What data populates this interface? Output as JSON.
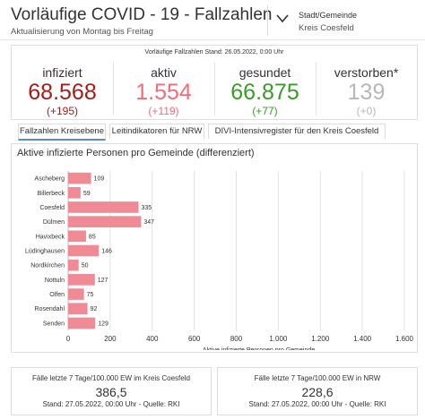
{
  "header": {
    "title": "Vorläufige COVID - 19 - Fallzahlen",
    "subtitle": "Aktualisierung von Montag bis Freitag",
    "selector_label": "Stadt/Gemeinde",
    "selector_value": "Kreis Coesfeld"
  },
  "summary": {
    "stand_text": "Vorläufige Fallzahlen Stand: 26.05.2022, 0:00 Uhr",
    "stats": [
      {
        "label": "infiziert",
        "value": "68.568",
        "change": "(+195)",
        "color": "#a51c1c"
      },
      {
        "label": "aktiv",
        "value": "1.554",
        "change": "(+119)",
        "color": "#f06d7a"
      },
      {
        "label": "gesundet",
        "value": "66.875",
        "change": "(+77)",
        "color": "#3a9a2a"
      },
      {
        "label": "verstorben*",
        "value": "139",
        "change": "(+0)",
        "color": "#b8b8b8"
      }
    ]
  },
  "tabs": [
    {
      "label": "Fallzahlen Kreisebene"
    },
    {
      "label": "Leitindikatoren für NRW"
    },
    {
      "label": "DIVI-Intensivregister für den Kreis Coesfeld"
    }
  ],
  "chart_data": {
    "type": "bar",
    "orientation": "horizontal",
    "title": "Aktive infizierte Personen pro Gemeinde (differenziert)",
    "xlabel": "Aktive infizierte Personen pro Gemeinde",
    "categories": [
      "Ascheberg",
      "Billerbeck",
      "Coesfeld",
      "Dülmen",
      "Havixbeck",
      "Lüdinghausen",
      "Nordkirchen",
      "Nottuln",
      "Olfen",
      "Rosendahl",
      "Senden"
    ],
    "values": [
      109,
      59,
      335,
      347,
      85,
      146,
      50,
      127,
      75,
      92,
      129
    ],
    "xlim": [
      0,
      1600
    ],
    "xticks": [
      "0",
      "200",
      "400",
      "600",
      "800",
      "1.000",
      "1.200",
      "1.400",
      "1.600"
    ],
    "bar_color": "#f08a94",
    "grid": true
  },
  "footer": {
    "cards": [
      {
        "label": "Fälle letzte 7 Tage/100.000 EW im Kreis Coesfeld",
        "value": "386,5",
        "stand": "Stand: 27.05.2022, 00:00 Uhr - Quelle: RKI"
      },
      {
        "label": "Fälle letzte 7 Tage/100.000 EW in NRW",
        "value": "228,6",
        "stand": "Stand: 27.05.2022, 00:00 Uhr - Quelle: RKI"
      }
    ]
  }
}
